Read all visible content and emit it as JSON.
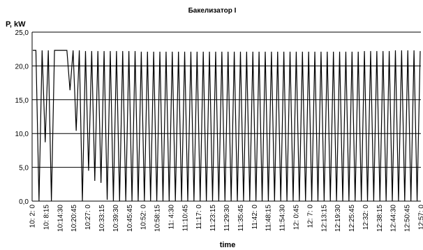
{
  "chart_data": {
    "type": "line",
    "title": "Бакелизатор I",
    "ylabel": "P, kW",
    "xlabel": "time",
    "ylim": [
      0,
      25
    ],
    "yticks": [
      "0,0",
      "5,0",
      "10,0",
      "15,0",
      "20,0",
      "25,0"
    ],
    "grid": true,
    "legend": "none",
    "line_color": "#000000",
    "x_tick_labels": [
      "10: 2: 0",
      "10: 8:15",
      "10:14:30",
      "10:20:45",
      "10:27: 0",
      "10:33:15",
      "10:39:30",
      "10:45:45",
      "10:52: 0",
      "10:58:15",
      "11: 4:30",
      "11:10:45",
      "11:17: 0",
      "11:23:15",
      "11:29:30",
      "11:35:45",
      "11:42: 0",
      "11:48:15",
      "11:54:30",
      "12: 0:45",
      "12: 7: 0",
      "12:13:15",
      "12:19:30",
      "12:25:45",
      "12:32: 0",
      "12:38:15",
      "12:44:30",
      "12:50:45",
      "12:57: 0"
    ],
    "series": [
      {
        "values": [
          22.3,
          22.3,
          0,
          22.3,
          8.7,
          22.3,
          0,
          22.3,
          22.3,
          22.3,
          22.3,
          22.3,
          16.4,
          22.3,
          10.4,
          22.3,
          0,
          22.2,
          4.5,
          22.2,
          3,
          22.2,
          2.7,
          22.2,
          0.2,
          22.2,
          0,
          22.2,
          0,
          22.2,
          0,
          22.2,
          0,
          22.2,
          0,
          22.1,
          0,
          22.1,
          0,
          22.1,
          0,
          22.1,
          0,
          22.1,
          0,
          22.1,
          0,
          22.1,
          0,
          22.1,
          0,
          22.1,
          0,
          22.1,
          0,
          22.1,
          0,
          22.1,
          0,
          22.1,
          0,
          22.1,
          0,
          22.1,
          0,
          22.1,
          0,
          22.1,
          0,
          22.1,
          0,
          22.1,
          0,
          22.1,
          0,
          22.1,
          0,
          22.1,
          0,
          22.1,
          0,
          22.1,
          0,
          22.1,
          0,
          22.1,
          0,
          22.1,
          0,
          22.1,
          0,
          22.1,
          0,
          22.1,
          0,
          22.1,
          0,
          22.1,
          0,
          22.1,
          0,
          22.1,
          0,
          22.1,
          0,
          22.1,
          0,
          22.2,
          0,
          22.2,
          0,
          22.2,
          0,
          22.2,
          0,
          22.2,
          0,
          22.3,
          0,
          22.3,
          0,
          22.3,
          0,
          22.3,
          0,
          22.2
        ]
      }
    ]
  }
}
